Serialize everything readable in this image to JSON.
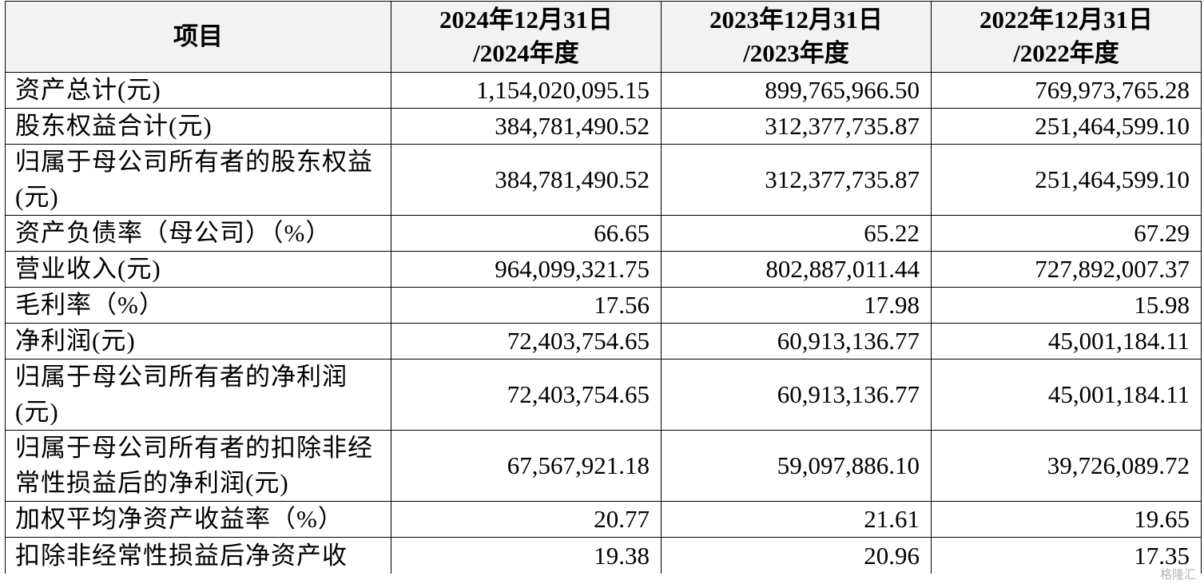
{
  "table": {
    "headers": [
      {
        "line1": "项目",
        "line2": ""
      },
      {
        "line1": "2024年12月31日",
        "line2": "/2024年度"
      },
      {
        "line1": "2023年12月31日",
        "line2": "/2023年度"
      },
      {
        "line1": "2022年12月31日",
        "line2": "/2022年度"
      }
    ],
    "rows": [
      {
        "label": "资产总计(元)",
        "values": [
          "1,154,020,095.15",
          "899,765,966.50",
          "769,973,765.28"
        ]
      },
      {
        "label": "股东权益合计(元)",
        "values": [
          "384,781,490.52",
          "312,377,735.87",
          "251,464,599.10"
        ]
      },
      {
        "label": "归属于母公司所有者的股东权益(元)",
        "values": [
          "384,781,490.52",
          "312,377,735.87",
          "251,464,599.10"
        ]
      },
      {
        "label": "资产负债率（母公司）（%）",
        "values": [
          "66.65",
          "65.22",
          "67.29"
        ]
      },
      {
        "label": "营业收入(元)",
        "values": [
          "964,099,321.75",
          "802,887,011.44",
          "727,892,007.37"
        ]
      },
      {
        "label": "毛利率（%）",
        "values": [
          "17.56",
          "17.98",
          "15.98"
        ]
      },
      {
        "label": "净利润(元)",
        "values": [
          "72,403,754.65",
          "60,913,136.77",
          "45,001,184.11"
        ]
      },
      {
        "label": "归属于母公司所有者的净利润(元)",
        "values": [
          "72,403,754.65",
          "60,913,136.77",
          "45,001,184.11"
        ]
      },
      {
        "label": "归属于母公司所有者的扣除非经常性损益后的净利润(元)",
        "values": [
          "67,567,921.18",
          "59,097,886.10",
          "39,726,089.72"
        ]
      },
      {
        "label": "加权平均净资产收益率（%）",
        "values": [
          "20.77",
          "21.61",
          "19.65"
        ]
      },
      {
        "label": "扣除非经常性损益后净资产收",
        "values": [
          "19.38",
          "20.96",
          "17.35"
        ]
      }
    ]
  },
  "watermark": "格隆汇"
}
